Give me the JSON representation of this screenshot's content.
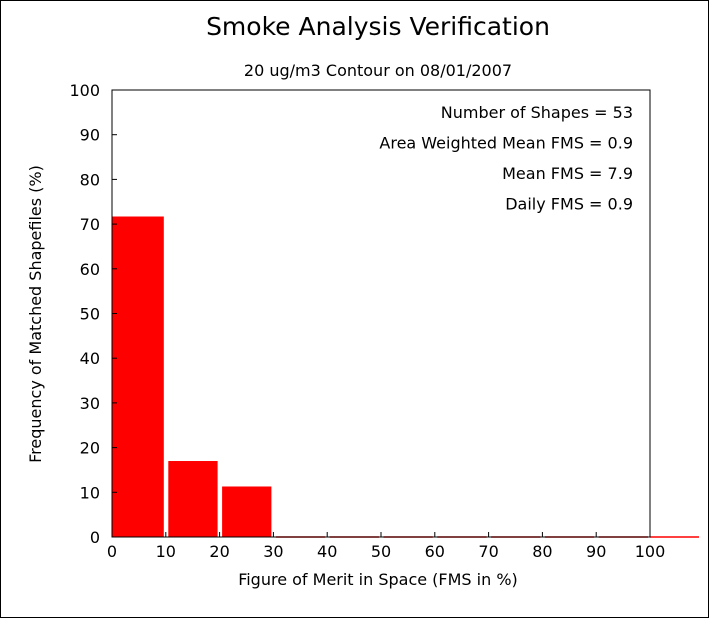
{
  "chart_data": {
    "type": "bar",
    "title": "Smoke Analysis Verification",
    "subtitle": "20 ug/m3 Contour on 08/01/2007",
    "xlabel": "Figure of Merit in Space (FMS in %)",
    "ylabel": "Frequency of Matched Shapefiles (%)",
    "xlim": [
      0,
      100
    ],
    "ylim": [
      0,
      100
    ],
    "xticks": [
      "0",
      "10",
      "20",
      "30",
      "40",
      "50",
      "60",
      "70",
      "80",
      "90",
      "100"
    ],
    "yticks": [
      "0",
      "10",
      "20",
      "30",
      "40",
      "50",
      "60",
      "70",
      "80",
      "90",
      "100"
    ],
    "bins": [
      {
        "x0": 0,
        "x1": 10,
        "value": 71.7
      },
      {
        "x0": 10,
        "x1": 20,
        "value": 17.0
      },
      {
        "x0": 20,
        "x1": 30,
        "value": 11.3
      },
      {
        "x0": 30,
        "x1": 40,
        "value": 0
      },
      {
        "x0": 40,
        "x1": 50,
        "value": 0
      },
      {
        "x0": 50,
        "x1": 60,
        "value": 0
      },
      {
        "x0": 60,
        "x1": 70,
        "value": 0
      },
      {
        "x0": 70,
        "x1": 80,
        "value": 0
      },
      {
        "x0": 80,
        "x1": 90,
        "value": 0
      },
      {
        "x0": 90,
        "x1": 100,
        "value": 0
      }
    ],
    "bar_color": "#ff0000",
    "grid": false,
    "stats_placement": "top-right",
    "stats": [
      "Number of Shapes = 53",
      "Area Weighted Mean FMS = 0.9",
      "Mean FMS = 7.9",
      "Daily FMS = 0.9"
    ]
  }
}
